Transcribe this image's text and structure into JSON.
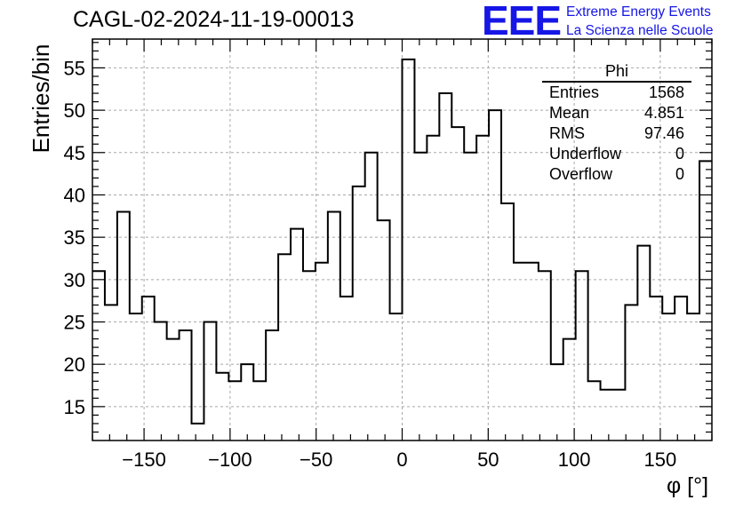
{
  "chart_data": {
    "type": "histogram",
    "title": "CAGL-02-2024-11-19-00013",
    "xlabel": "φ [°]",
    "ylabel": "Entries/bin",
    "xlim": [
      -180,
      180
    ],
    "ylim": [
      11,
      58.4
    ],
    "grid": true,
    "bin_width": 7.2,
    "x_ticks": [
      -150,
      -100,
      -50,
      0,
      50,
      100,
      150
    ],
    "y_ticks": [
      15,
      20,
      25,
      30,
      35,
      40,
      45,
      50,
      55
    ],
    "values": [
      31,
      27,
      38,
      26,
      28,
      25,
      23,
      24,
      13,
      25,
      19,
      18,
      20,
      18,
      24,
      33,
      36,
      31,
      32,
      38,
      28,
      41,
      45,
      37,
      26,
      56,
      45,
      47,
      52,
      48,
      45,
      47,
      50,
      39,
      32,
      32,
      31,
      20,
      23,
      31,
      18,
      17,
      17,
      27,
      34,
      28,
      26,
      28,
      26,
      44
    ]
  },
  "stats_box": {
    "title": "Phi",
    "rows": [
      {
        "label": "Entries",
        "value": "1568"
      },
      {
        "label": "Mean",
        "value": "4.851"
      },
      {
        "label": "RMS",
        "value": "97.46"
      },
      {
        "label": "Underflow",
        "value": "0"
      },
      {
        "label": "Overflow",
        "value": "0"
      }
    ]
  },
  "logo": {
    "mark": "EEE",
    "line1": "Extreme Energy Events",
    "line2": "La Scienza nelle Scuole"
  },
  "colors": {
    "logo": "#1616e6",
    "line": "#000000",
    "grid": "#b0b0b0"
  }
}
